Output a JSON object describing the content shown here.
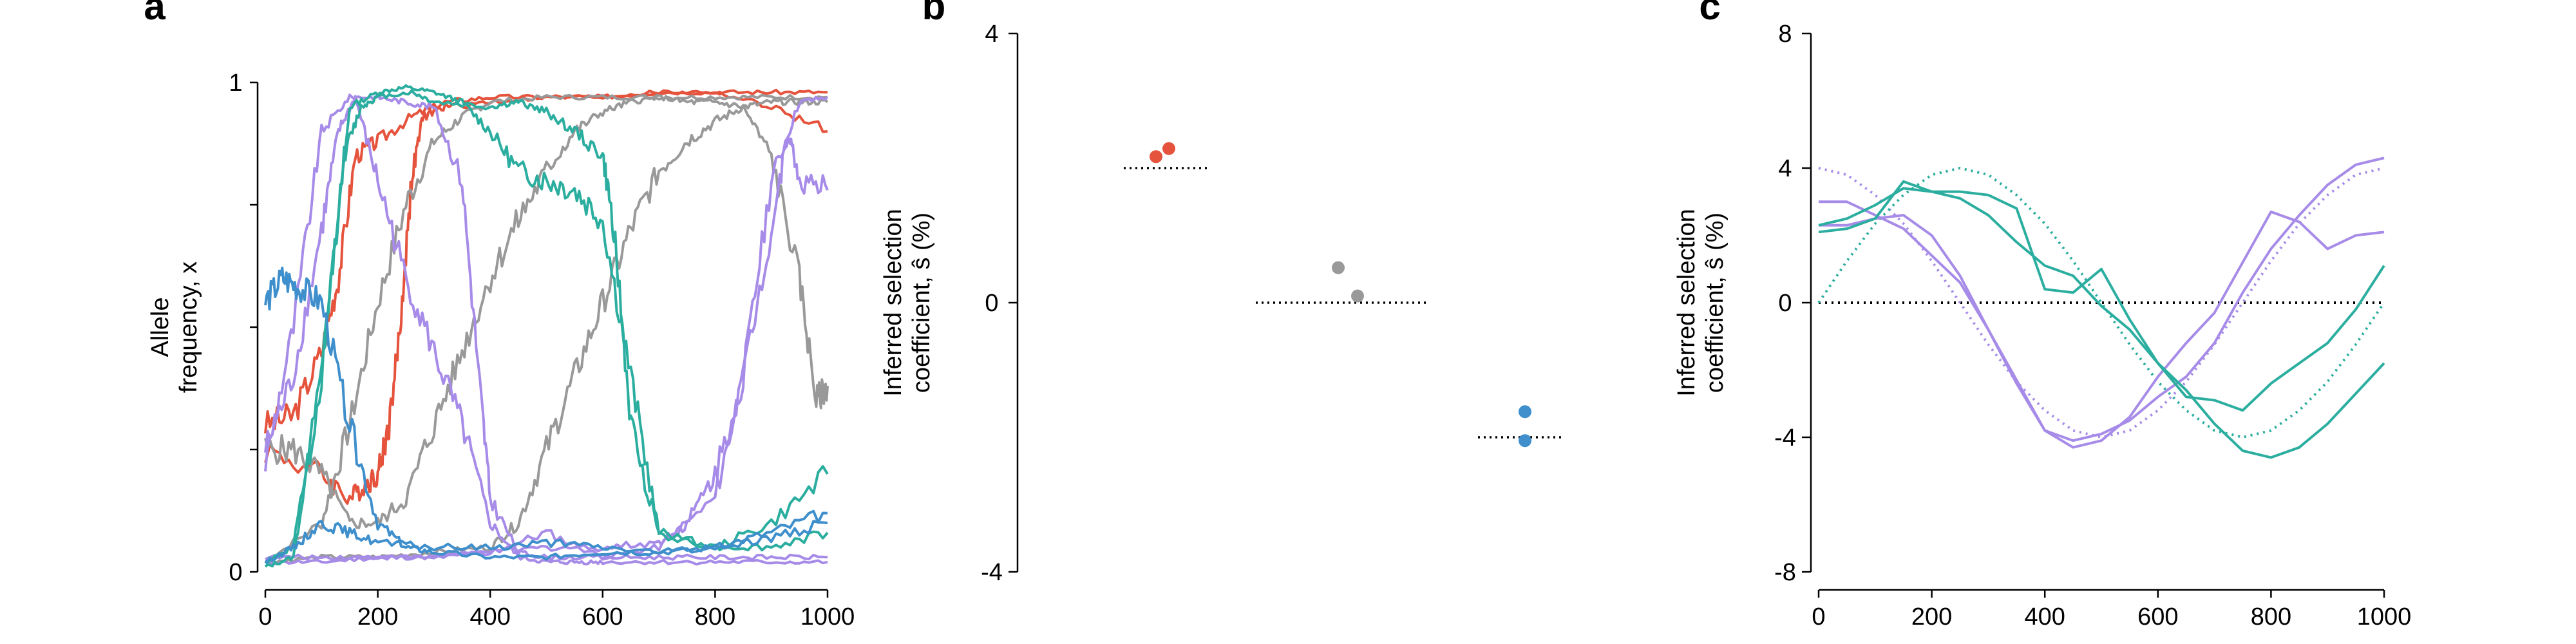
{
  "colors": {
    "red": "#E5533D",
    "gray": "#999999",
    "blue": "#3E8FCC",
    "purple": "#A78BE8",
    "teal": "#2BAE9F",
    "black": "#000000"
  },
  "chart_data": [
    {
      "panel": "a",
      "type": "line",
      "ylabel_lines": [
        "Allele",
        "frequency, x"
      ],
      "xlim": [
        0,
        1000
      ],
      "ylim": [
        0,
        1
      ],
      "xticks": [
        0,
        200,
        400,
        600,
        800,
        1000
      ],
      "yticks_labeled": [
        0,
        1
      ],
      "series": [
        {
          "color": "red",
          "x": [
            0,
            50,
            100,
            130,
            160,
            200,
            260,
            320,
            400,
            500,
            600,
            700,
            800,
            900,
            1000
          ],
          "y": [
            0.3,
            0.32,
            0.45,
            0.6,
            0.85,
            0.88,
            0.93,
            0.96,
            0.97,
            0.97,
            0.97,
            0.98,
            0.98,
            0.98,
            0.98
          ]
        },
        {
          "color": "red",
          "x": [
            0,
            100,
            150,
            180,
            200,
            220,
            240,
            260,
            280,
            320,
            400,
            500,
            600,
            700,
            800,
            900,
            1000
          ],
          "y": [
            0.25,
            0.2,
            0.15,
            0.18,
            0.2,
            0.3,
            0.5,
            0.8,
            0.93,
            0.95,
            0.96,
            0.97,
            0.97,
            0.98,
            0.98,
            0.95,
            0.9
          ]
        },
        {
          "color": "gray",
          "x": [
            0,
            50,
            100,
            150,
            200,
            250,
            300,
            350,
            400,
            450,
            500,
            550,
            600,
            650,
            700,
            750,
            800,
            850,
            900,
            950,
            980,
            1000
          ],
          "y": [
            0.25,
            0.25,
            0.2,
            0.1,
            0.1,
            0.15,
            0.3,
            0.45,
            0.6,
            0.72,
            0.82,
            0.9,
            0.94,
            0.96,
            0.97,
            0.96,
            0.96,
            0.95,
            0.85,
            0.6,
            0.35,
            0.38
          ]
        },
        {
          "color": "gray",
          "x": [
            0,
            100,
            200,
            300,
            400,
            450,
            500,
            550,
            600,
            650,
            700,
            750,
            800,
            850,
            900,
            950,
            1000
          ],
          "y": [
            0.02,
            0.03,
            0.03,
            0.04,
            0.05,
            0.1,
            0.25,
            0.4,
            0.55,
            0.7,
            0.82,
            0.88,
            0.92,
            0.95,
            0.96,
            0.96,
            0.96
          ]
        },
        {
          "color": "gray",
          "x": [
            0,
            100,
            150,
            200,
            250,
            300,
            350,
            400,
            500,
            600,
            700,
            800,
            900,
            1000
          ],
          "y": [
            0.02,
            0.1,
            0.3,
            0.55,
            0.75,
            0.88,
            0.93,
            0.96,
            0.97,
            0.97,
            0.97,
            0.97,
            0.97,
            0.97
          ]
        },
        {
          "color": "purple",
          "x": [
            0,
            50,
            100,
            130,
            160,
            200,
            250,
            300,
            350,
            400,
            450,
            500,
            550,
            600,
            700,
            800,
            900,
            1000
          ],
          "y": [
            0.25,
            0.4,
            0.7,
            0.9,
            0.97,
            0.8,
            0.6,
            0.45,
            0.3,
            0.1,
            0.03,
            0.02,
            0.02,
            0.02,
            0.02,
            0.02,
            0.02,
            0.02
          ]
        },
        {
          "color": "purple",
          "x": [
            0,
            50,
            100,
            150,
            200,
            250,
            300,
            350,
            380,
            400,
            450,
            500,
            600,
            700,
            800,
            900,
            1000
          ],
          "y": [
            0.22,
            0.5,
            0.9,
            0.97,
            0.97,
            0.96,
            0.95,
            0.8,
            0.4,
            0.15,
            0.04,
            0.03,
            0.03,
            0.03,
            0.03,
            0.03,
            0.03
          ]
        },
        {
          "color": "purple",
          "x": [
            0,
            100,
            200,
            300,
            400,
            500,
            600,
            700,
            750,
            800,
            850,
            900,
            930,
            950,
            1000
          ],
          "y": [
            0.03,
            0.03,
            0.03,
            0.03,
            0.04,
            0.05,
            0.05,
            0.06,
            0.1,
            0.2,
            0.4,
            0.7,
            0.9,
            0.8,
            0.78
          ]
        },
        {
          "color": "purple",
          "x": [
            0,
            100,
            200,
            300,
            400,
            500,
            600,
            700,
            800,
            850,
            900,
            950,
            1000
          ],
          "y": [
            0.02,
            0.02,
            0.03,
            0.03,
            0.04,
            0.08,
            0.03,
            0.05,
            0.15,
            0.4,
            0.8,
            0.96,
            0.97
          ]
        },
        {
          "color": "teal",
          "x": [
            0,
            50,
            100,
            140,
            170,
            200,
            260,
            300,
            400,
            450,
            500,
            550,
            600,
            620,
            650,
            700,
            800,
            900,
            1000
          ],
          "y": [
            0.02,
            0.05,
            0.4,
            0.85,
            0.95,
            0.97,
            0.98,
            0.96,
            0.95,
            0.96,
            0.94,
            0.9,
            0.85,
            0.7,
            0.3,
            0.08,
            0.05,
            0.05,
            0.08
          ]
        },
        {
          "color": "teal",
          "x": [
            0,
            50,
            100,
            150,
            200,
            250,
            300,
            350,
            400,
            450,
            500,
            550,
            600,
            650,
            700,
            800,
            900,
            1000
          ],
          "y": [
            0.01,
            0.03,
            0.4,
            0.95,
            0.98,
            0.99,
            0.98,
            0.96,
            0.9,
            0.82,
            0.8,
            0.78,
            0.72,
            0.4,
            0.08,
            0.05,
            0.1,
            0.2
          ]
        },
        {
          "color": "blue",
          "x": [
            0,
            30,
            60,
            100,
            150,
            200,
            250,
            300,
            400,
            500,
            600,
            700,
            800,
            900,
            1000
          ],
          "y": [
            0.55,
            0.6,
            0.58,
            0.55,
            0.3,
            0.1,
            0.05,
            0.04,
            0.03,
            0.03,
            0.04,
            0.04,
            0.05,
            0.08,
            0.12
          ]
        },
        {
          "color": "blue",
          "x": [
            0,
            50,
            100,
            150,
            200,
            300,
            400,
            500,
            600,
            700,
            800,
            900,
            1000
          ],
          "y": [
            0.02,
            0.05,
            0.1,
            0.08,
            0.06,
            0.05,
            0.05,
            0.06,
            0.05,
            0.04,
            0.05,
            0.07,
            0.1
          ]
        }
      ]
    },
    {
      "panel": "b",
      "type": "scatter",
      "ylabel_lines": [
        "Inferred selection",
        "coefficient, ŝ (%)"
      ],
      "ylim": [
        -4,
        4
      ],
      "yticks": [
        4,
        0,
        -4
      ],
      "groups": [
        {
          "color": "red",
          "true_value": 2,
          "points": [
            2.17,
            2.29
          ]
        },
        {
          "color": "gray",
          "true_value": 0,
          "points": [
            0.52,
            0.1
          ]
        },
        {
          "color": "blue",
          "true_value": -2,
          "points": [
            -1.62,
            -2.05
          ]
        }
      ]
    },
    {
      "panel": "c",
      "type": "line",
      "ylabel_lines": [
        "Inferred selection",
        "coefficient, ŝ (%)"
      ],
      "xlim": [
        0,
        1000
      ],
      "ylim": [
        -8,
        8
      ],
      "xticks": [
        0,
        200,
        400,
        600,
        800,
        1000
      ],
      "yticks": [
        8,
        4,
        0,
        -4,
        -8
      ],
      "series": [
        {
          "color": "black",
          "style": "dotted",
          "x": [
            0,
            1000
          ],
          "y": [
            0,
            0
          ]
        },
        {
          "color": "purple",
          "style": "dotted",
          "x": [
            0,
            50,
            100,
            150,
            200,
            250,
            300,
            350,
            400,
            450,
            500,
            550,
            600,
            650,
            700,
            750,
            800,
            850,
            900,
            950,
            1000
          ],
          "y": [
            4.0,
            3.8,
            3.2,
            2.35,
            1.24,
            0.0,
            -1.24,
            -2.35,
            -3.2,
            -3.8,
            -4.0,
            -3.8,
            -3.2,
            -2.35,
            -1.24,
            0.0,
            1.24,
            2.35,
            3.2,
            3.8,
            4.0
          ]
        },
        {
          "color": "teal",
          "style": "dotted",
          "x": [
            0,
            50,
            100,
            150,
            200,
            250,
            300,
            350,
            400,
            450,
            500,
            550,
            600,
            650,
            700,
            750,
            800,
            850,
            900,
            950,
            1000
          ],
          "y": [
            0.0,
            1.24,
            2.35,
            3.2,
            3.8,
            4.0,
            3.8,
            3.2,
            2.35,
            1.24,
            0.0,
            -1.24,
            -2.35,
            -3.2,
            -3.8,
            -4.0,
            -3.8,
            -3.2,
            -2.35,
            -1.24,
            0.0
          ]
        },
        {
          "color": "purple",
          "style": "solid",
          "x": [
            0,
            50,
            100,
            150,
            200,
            250,
            300,
            350,
            400,
            450,
            500,
            550,
            600,
            650,
            700,
            750,
            800,
            850,
            900,
            950,
            1000
          ],
          "y": [
            3.0,
            3.0,
            2.6,
            2.2,
            1.4,
            0.6,
            -0.8,
            -2.4,
            -3.8,
            -4.1,
            -3.9,
            -3.5,
            -2.8,
            -2.2,
            -1.2,
            0.3,
            1.6,
            2.6,
            3.5,
            4.1,
            4.3
          ]
        },
        {
          "color": "purple",
          "style": "solid",
          "x": [
            0,
            50,
            100,
            150,
            200,
            250,
            300,
            350,
            400,
            450,
            500,
            550,
            600,
            650,
            700,
            750,
            800,
            850,
            900,
            950,
            1000
          ],
          "y": [
            2.3,
            2.3,
            2.5,
            2.6,
            2.0,
            0.8,
            -0.8,
            -2.3,
            -3.8,
            -4.3,
            -4.1,
            -3.4,
            -2.2,
            -1.2,
            -0.3,
            1.2,
            2.7,
            2.4,
            1.6,
            2.0,
            2.1
          ]
        },
        {
          "color": "teal",
          "style": "solid",
          "x": [
            0,
            50,
            100,
            150,
            200,
            250,
            300,
            350,
            400,
            450,
            500,
            550,
            600,
            650,
            700,
            750,
            800,
            850,
            900,
            950,
            1000
          ],
          "y": [
            2.1,
            2.2,
            2.5,
            3.6,
            3.3,
            3.3,
            3.2,
            2.8,
            0.4,
            0.3,
            1.0,
            -0.5,
            -1.8,
            -2.8,
            -2.9,
            -3.2,
            -2.4,
            -1.8,
            -1.2,
            -0.2,
            1.1
          ]
        },
        {
          "color": "teal",
          "style": "solid",
          "x": [
            0,
            50,
            100,
            150,
            200,
            250,
            300,
            350,
            400,
            450,
            500,
            550,
            600,
            650,
            700,
            750,
            800,
            850,
            900,
            950,
            1000
          ],
          "y": [
            2.3,
            2.5,
            2.9,
            3.4,
            3.3,
            3.1,
            2.6,
            1.8,
            1.1,
            0.8,
            -0.1,
            -0.8,
            -1.8,
            -2.6,
            -3.6,
            -4.4,
            -4.6,
            -4.3,
            -3.6,
            -2.7,
            -1.8
          ]
        }
      ]
    }
  ]
}
